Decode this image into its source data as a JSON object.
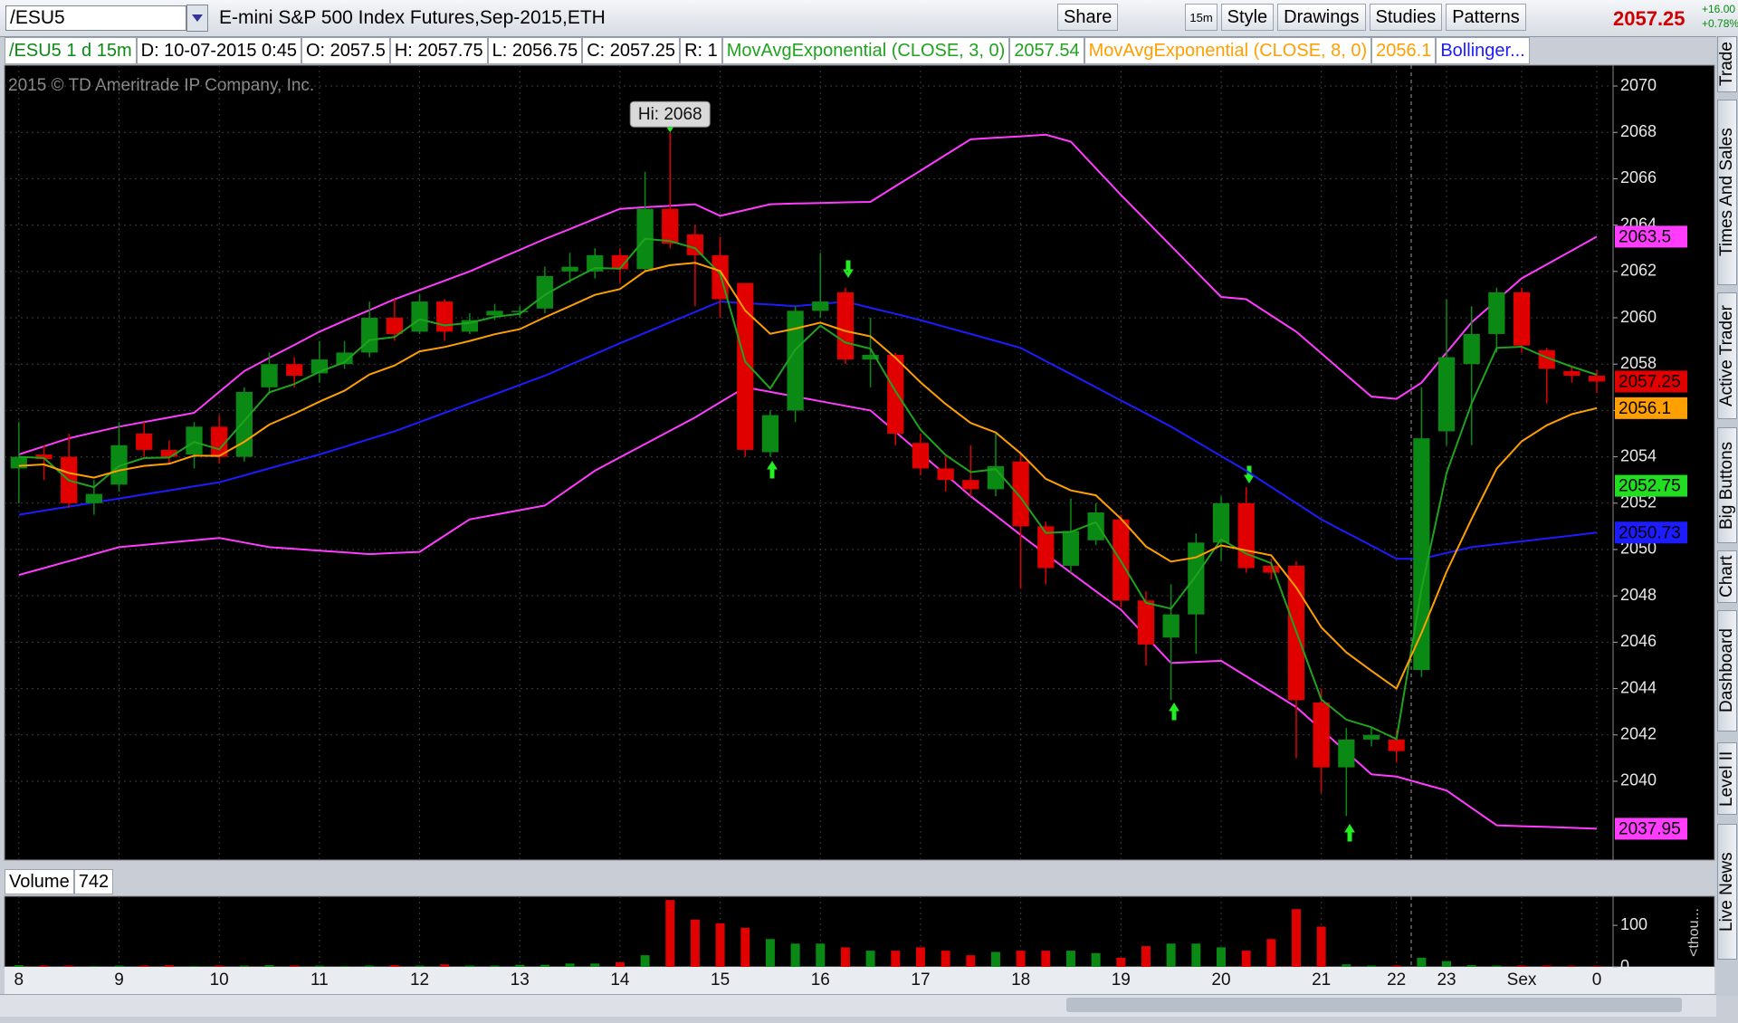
{
  "toolbar": {
    "symbol": "/ESU5",
    "description": "E-mini S&P 500 Index Futures,Sep-2015,ETH",
    "buttons": [
      "Share",
      "15m",
      "Style",
      "Drawings",
      "Studies",
      "Patterns"
    ],
    "last_price": "2057.25",
    "change": "+16.00",
    "change_pct": "+0.78%"
  },
  "study_header": [
    "/ESU5 1 d 15m",
    "D: 10-07-2015 0:45",
    "O: 2057.5",
    "H: 2057.75",
    "L: 2056.75",
    "C: 2057.25",
    "R: 1"
  ],
  "side_tabs": [
    "Trade",
    "Times And Sales",
    "Active Trader",
    "Big Buttons",
    "Chart",
    "Dashboard",
    "Level II",
    "Live News"
  ],
  "chart_data": {
    "type": "candlestick",
    "copyright": "2015 © TD Ameritrade IP Company, Inc.",
    "annotation": "Hi: 2068",
    "up_color": "#0a8a14",
    "down_color": "#e00000",
    "grid": true,
    "categories": [
      "8",
      null,
      null,
      null,
      "9",
      null,
      null,
      null,
      "10",
      null,
      null,
      null,
      "11",
      null,
      null,
      null,
      "12",
      null,
      null,
      null,
      "13",
      null,
      null,
      null,
      "14",
      null,
      null,
      null,
      "15",
      null,
      null,
      null,
      "16",
      null,
      null,
      null,
      "17",
      null,
      null,
      null,
      "18",
      null,
      null,
      null,
      "19",
      null,
      null,
      null,
      "20",
      null,
      null,
      null,
      "21",
      null,
      null,
      "22",
      null,
      "23",
      null,
      null,
      "Sex",
      null,
      null,
      "0"
    ],
    "open": [
      2053.5,
      2054.1,
      2054,
      2052,
      2052.8,
      2055,
      2054.3,
      2054.1,
      2055.3,
      2054,
      2057,
      2058,
      2057.6,
      2058,
      2058.5,
      2060,
      2059.4,
      2060.7,
      2059.4,
      2060.1,
      2060.3,
      2060.4,
      2062,
      2062,
      2062.7,
      2062.1,
      2064.7,
      2063.6,
      2062.7,
      2061.5,
      2054.2,
      2056,
      2060.3,
      2061.1,
      2058.2,
      2058.4,
      2054.6,
      2053.5,
      2053,
      2052.6,
      2053.8,
      2051,
      2049.3,
      2050.4,
      2051.3,
      2047.8,
      2046.2,
      2047.2,
      2050.3,
      2052,
      2049.3,
      2049.3,
      2043.4,
      2040.6,
      2041.8,
      2041.8,
      2044.8,
      2055.1,
      2058,
      2059.3,
      2061.1,
      2058.6,
      2057.7,
      2057.5
    ],
    "high": [
      2055.5,
      2054.5,
      2055,
      2053,
      2055.5,
      2055.5,
      2054.7,
      2055.5,
      2055.8,
      2057,
      2058.5,
      2058.3,
      2059,
      2059,
      2060.7,
      2060.8,
      2061,
      2060.8,
      2060.2,
      2060.6,
      2060.5,
      2062.2,
      2062.8,
      2063,
      2063,
      2066.3,
      2068,
      2064,
      2063.5,
      2061.5,
      2056,
      2060.5,
      2062.8,
      2061.3,
      2060,
      2058.5,
      2055,
      2054,
      2054.5,
      2055,
      2054.2,
      2051.2,
      2052.2,
      2052,
      2051.5,
      2048.2,
      2048.5,
      2050.7,
      2052.3,
      2052.7,
      2049.6,
      2049.5,
      2044,
      2042.3,
      2042.3,
      2042.2,
      2057,
      2060.8,
      2060.5,
      2061.3,
      2061.3,
      2058.7,
      2057.9,
      2057.75
    ],
    "low": [
      2052,
      2053,
      2051.8,
      2051.5,
      2052.5,
      2054,
      2053.7,
      2053.5,
      2053.7,
      2053.8,
      2056.7,
      2057,
      2057.2,
      2057.8,
      2058.3,
      2059,
      2059.3,
      2059,
      2059.3,
      2059.9,
      2060,
      2060.2,
      2061.5,
      2061.7,
      2061.5,
      2062,
      2063,
      2060.5,
      2060,
      2054,
      2054,
      2055.5,
      2060,
      2058,
      2057,
      2054.5,
      2053.2,
      2052.5,
      2052.3,
      2052.3,
      2048.3,
      2048.5,
      2049,
      2050.2,
      2047.5,
      2045,
      2043.5,
      2045.5,
      2049.5,
      2049,
      2048.7,
      2041,
      2039.5,
      2038.5,
      2041.5,
      2040.8,
      2044.5,
      2054.5,
      2054.5,
      2058.5,
      2058.5,
      2056.3,
      2057.2,
      2056.75
    ],
    "close": [
      2054,
      2053.9,
      2052,
      2052.4,
      2054.5,
      2054.3,
      2054,
      2055.3,
      2054,
      2056.8,
      2058,
      2057.5,
      2058.2,
      2058.5,
      2060,
      2059.3,
      2060.7,
      2059.4,
      2059.9,
      2060.3,
      2060.3,
      2061.8,
      2062.2,
      2062.7,
      2062.1,
      2064.7,
      2063.2,
      2062.7,
      2060.8,
      2054.3,
      2055.8,
      2060.3,
      2060.7,
      2058.2,
      2058.4,
      2055,
      2053.5,
      2053,
      2052.6,
      2053.6,
      2051,
      2049.2,
      2050.8,
      2051.6,
      2047.8,
      2045.9,
      2047.2,
      2050.3,
      2052,
      2049.2,
      2049,
      2043.5,
      2040.6,
      2041.8,
      2042,
      2041.3,
      2054.8,
      2058.3,
      2059.3,
      2061.1,
      2058.8,
      2057.8,
      2057.5,
      2057.25
    ],
    "series": [
      {
        "name": "MovAvgExponential (CLOSE, 3, 0)",
        "color": "#1fa31f",
        "values": [
          2054,
          2053.95,
          2052.98,
          2052.69,
          2053.6,
          2053.95,
          2053.97,
          2054.64,
          2054.32,
          2055.56,
          2056.78,
          2057.14,
          2057.67,
          2058.08,
          2059.04,
          2059.17,
          2059.94,
          2059.67,
          2059.78,
          2060.04,
          2060.17,
          2060.99,
          2061.6,
          2062.15,
          2062.12,
          2063.41,
          2063.31,
          2063,
          2061.9,
          2058.1,
          2056.95,
          2058.63,
          2059.66,
          2058.93,
          2058.67,
          2056.83,
          2055.17,
          2054.08,
          2053.34,
          2053.47,
          2052.24,
          2050.72,
          2050.76,
          2051.18,
          2049.49,
          2047.7,
          2047.45,
          2048.87,
          2050.44,
          2049.82,
          2049.41,
          2046.46,
          2043.53,
          2042.66,
          2042.33,
          2041.82,
          2048.31,
          2053.3,
          2056.3,
          2058.7,
          2058.75,
          2058.28,
          2057.89,
          2057.54
        ]
      },
      {
        "name": "MovAvgExponential (CLOSE, 8, 0)",
        "color": "#ff9f00",
        "values": [
          2053.61,
          2053.67,
          2053.3,
          2053.1,
          2053.41,
          2053.61,
          2053.7,
          2054.05,
          2054.04,
          2054.65,
          2055.39,
          2055.86,
          2056.38,
          2056.85,
          2057.55,
          2057.94,
          2058.55,
          2058.74,
          2059,
          2059.29,
          2059.51,
          2060.02,
          2060.5,
          2060.99,
          2061.24,
          2062.01,
          2062.27,
          2062.37,
          2062.02,
          2060.31,
          2059.31,
          2059.53,
          2059.79,
          2059.43,
          2059.2,
          2058.27,
          2057.21,
          2056.28,
          2055.46,
          2055.05,
          2054.15,
          2053.05,
          2052.55,
          2052.34,
          2051.33,
          2050.13,
          2049.48,
          2049.66,
          2050.18,
          2049.96,
          2049.75,
          2048.36,
          2046.64,
          2045.56,
          2044.77,
          2044,
          2046.4,
          2049.04,
          2051.32,
          2053.49,
          2054.67,
          2055.36,
          2055.84,
          2056.1
        ]
      }
    ],
    "bollinger": {
      "name": "Bollinger...",
      "band_color": "#ff3cff",
      "middle_color": "#1c1cff",
      "upper": [
        2054.1,
        2054.45,
        2054.8,
        2055.05,
        2055.3,
        2055.5,
        2055.7,
        2055.9,
        2056.8,
        2057.7,
        2058.27,
        2058.83,
        2059.4,
        2059.87,
        2060.33,
        2060.8,
        2061.2,
        2061.6,
        2062,
        2062.47,
        2062.93,
        2063.4,
        2063.83,
        2064.27,
        2064.7,
        2064.77,
        2064.83,
        2064.9,
        2064.4,
        2064.65,
        2064.9,
        2064.93,
        2064.95,
        2064.98,
        2065,
        2065.68,
        2066.35,
        2067.03,
        2067.7,
        2067.77,
        2067.83,
        2067.9,
        2067.6,
        2066.45,
        2065.3,
        2064.2,
        2063.1,
        2062,
        2060.9,
        2060.8,
        2060.1,
        2059.4,
        2058.47,
        2057.53,
        2056.6,
        2056.5,
        2057.2,
        2058.5,
        2059.8,
        2060.75,
        2061.7,
        2062.3,
        2062.9,
        2063.5
      ],
      "middle": [
        2051.5,
        2051.68,
        2051.85,
        2052.03,
        2052.2,
        2052.38,
        2052.55,
        2052.73,
        2052.9,
        2053.2,
        2053.5,
        2053.8,
        2054.1,
        2054.43,
        2054.77,
        2055.1,
        2055.5,
        2055.9,
        2056.3,
        2056.7,
        2057.1,
        2057.5,
        2057.97,
        2058.43,
        2058.9,
        2059.35,
        2059.8,
        2060.25,
        2060.7,
        2060.63,
        2060.57,
        2060.5,
        2060.6,
        2060.7,
        2060.43,
        2060.17,
        2059.9,
        2059.6,
        2059.3,
        2059,
        2058.7,
        2058.13,
        2057.57,
        2057,
        2056.43,
        2055.87,
        2055.3,
        2054.67,
        2054.03,
        2053.4,
        2052.7,
        2052,
        2051.3,
        2050.73,
        2050.17,
        2049.6,
        2049.6,
        2049.85,
        2050.1,
        2050.23,
        2050.35,
        2050.48,
        2050.6,
        2050.73
      ],
      "lower": [
        2048.9,
        2049.2,
        2049.5,
        2049.8,
        2050.1,
        2050.2,
        2050.3,
        2050.4,
        2050.5,
        2050.3,
        2050.1,
        2050.03,
        2049.95,
        2049.88,
        2049.8,
        2049.85,
        2049.9,
        2050.6,
        2051.3,
        2051.5,
        2051.7,
        2051.9,
        2052.65,
        2053.4,
        2053.98,
        2054.55,
        2055.13,
        2055.7,
        2056.35,
        2057,
        2056.8,
        2056.6,
        2056.4,
        2056.2,
        2056,
        2055.08,
        2054.15,
        2053.23,
        2052.3,
        2051.47,
        2050.63,
        2049.8,
        2049,
        2048.2,
        2047.4,
        2046.25,
        2045.1,
        2045.15,
        2045.2,
        2044.53,
        2043.87,
        2043.2,
        2042.23,
        2041.27,
        2040.3,
        2040.2,
        2039.9,
        2039.6,
        2038.85,
        2038.1,
        2038.06,
        2038.03,
        2037.99,
        2037.95
      ]
    },
    "ylim": [
      2036.6,
      2070.9
    ],
    "yticks": [
      2040,
      2042,
      2044,
      2046,
      2048,
      2050,
      2052,
      2054,
      2056,
      2058,
      2060,
      2062,
      2064,
      2066,
      2068,
      2070
    ],
    "price_markers": [
      {
        "value": 2063.5,
        "color": "#ff3cff"
      },
      {
        "value": 2057.25,
        "color": "#e00000"
      },
      {
        "value": 2056.1,
        "color": "#ff9f00"
      },
      {
        "value": 2052.75,
        "color": "#22dd22"
      },
      {
        "value": 2050.73,
        "color": "#1c1cff"
      },
      {
        "value": 2037.95,
        "color": "#ff3cff"
      }
    ],
    "volume": {
      "title": "Volume",
      "value": 742,
      "unit": "<thou...",
      "values": [
        4,
        3,
        3,
        2,
        3,
        3,
        4,
        2,
        3,
        3,
        4,
        3,
        3,
        2,
        3,
        4,
        3,
        6,
        3,
        3,
        5,
        5,
        8,
        8,
        11,
        28,
        161,
        114,
        105,
        94,
        67,
        56,
        56,
        47,
        39,
        39,
        47,
        39,
        28,
        36,
        39,
        39,
        39,
        33,
        22,
        50,
        56,
        56,
        47,
        39,
        67,
        139,
        97,
        6,
        3,
        3,
        22,
        14,
        4,
        3,
        3,
        3,
        2,
        2
      ],
      "ylim": [
        0,
        170
      ],
      "yticks": [
        0,
        100
      ]
    }
  }
}
